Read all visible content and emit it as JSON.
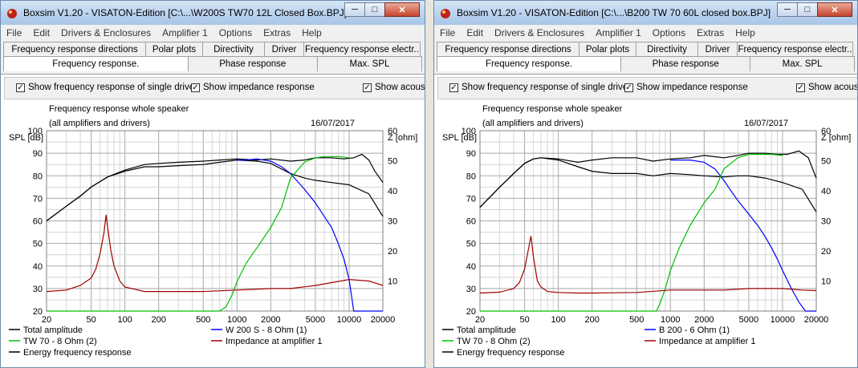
{
  "windows": [
    {
      "title": "Boxsim V1.20 - VISATON-Edition [C:\\...\\W200S TW70 12L Closed Box.BPJ]",
      "menu": [
        "File",
        "Edit",
        "Drivers & Enclosures",
        "Amplifier 1",
        "Options",
        "Extras",
        "Help"
      ],
      "tabs_top": [
        "Frequency response directions",
        "Polar plots",
        "Directivity",
        "Driver",
        "Frequency response electr.."
      ],
      "tabs_bottom": [
        "Frequency response.",
        "Phase response",
        "Max. SPL"
      ],
      "checkboxes": [
        {
          "label": "Show frequency response of single drive",
          "checked": true
        },
        {
          "label": "Show impedance response",
          "checked": true
        },
        {
          "label": "Show acous",
          "checked": true
        }
      ],
      "plot_title": "Frequency response whole speaker",
      "plot_subtitle": "(all amplifiers and drivers)",
      "date": "16/07/2017",
      "y_left_label": "SPL [dB]",
      "y_right_label": "Z [ohm]",
      "chart_data": {
        "type": "line",
        "xscale": "log",
        "xlim": [
          20,
          20000
        ],
        "ylim": [
          20,
          100
        ],
        "y2lim": [
          0,
          60
        ],
        "xticks": [
          "20",
          "50",
          "100",
          "200",
          "500",
          "1000",
          "2000",
          "5000",
          "10000",
          "20000"
        ],
        "yticks": [
          "20",
          "30",
          "40",
          "50",
          "60",
          "70",
          "80",
          "90",
          "100"
        ],
        "y2ticks": [
          "10",
          "20",
          "30",
          "40",
          "50",
          "60"
        ],
        "legend": [
          "Total amplitude",
          "W 200 S - 8 Ohm (1)",
          "TW 70 - 8 Ohm (2)",
          "Impedance at amplifier 1",
          "Energy frequency response"
        ],
        "series": [
          {
            "name": "Total amplitude",
            "color": "#000000",
            "x": [
              20,
              30,
              40,
              50,
              70,
              100,
              150,
              200,
              300,
              500,
              700,
              1000,
              1500,
              2000,
              3000,
              4000,
              5000,
              7000,
              9000,
              11000,
              13000,
              15000,
              17000,
              20000
            ],
            "y": [
              60,
              66.5,
              71,
              75,
              79.5,
              82.5,
              85,
              85.5,
              86,
              86.5,
              87,
              87.5,
              87,
              87.5,
              86.5,
              87,
              88,
              88,
              87.5,
              88,
              89.5,
              87,
              82,
              77
            ]
          },
          {
            "name": "Energy frequency response",
            "color": "#000000",
            "x": [
              20,
              30,
              40,
              50,
              70,
              100,
              150,
              200,
              300,
              500,
              700,
              1000,
              1500,
              2000,
              3000,
              4000,
              5000,
              7000,
              10000,
              15000,
              20000
            ],
            "y": [
              60,
              66.5,
              71,
              75,
              79.5,
              82,
              84,
              84,
              84.5,
              85,
              86,
              87,
              86.5,
              85.5,
              81,
              79,
              78,
              77,
              76,
              72,
              62
            ]
          },
          {
            "name": "W 200 S - 8 Ohm (1)",
            "color": "#0000ff",
            "x": [
              1000,
              1200,
              1500,
              2000,
              2500,
              3000,
              4000,
              5000,
              6000,
              7000,
              8000,
              9000,
              10000,
              11000,
              13000,
              15000,
              20000
            ],
            "y": [
              87,
              87,
              87.5,
              86.5,
              84,
              81,
              74,
              68,
              62,
              57,
              50,
              43,
              34,
              20,
              20,
              20,
              20
            ]
          },
          {
            "name": "TW 70 - 8 Ohm (2)",
            "color": "#00c000",
            "x": [
              20,
              700,
              800,
              900,
              1000,
              1200,
              1500,
              2000,
              2500,
              3000,
              4000,
              5000,
              6000,
              8000,
              10000
            ],
            "y": [
              20,
              20,
              22,
              27,
              33,
              41,
              48,
              57,
              66,
              79,
              86,
              88,
              88.5,
              88.5,
              88
            ]
          },
          {
            "name": "Impedance at amplifier 1",
            "color": "#a00000",
            "axis": "right",
            "x": [
              20,
              30,
              40,
              50,
              55,
              60,
              65,
              68,
              70,
              75,
              80,
              90,
              100,
              150,
              200,
              500,
              1000,
              2000,
              3000,
              5000,
              10000,
              15000,
              20000
            ],
            "y": [
              6.5,
              7,
              8.5,
              11,
              14,
              19,
              26,
              32,
              28,
              20,
              15,
              10,
              8,
              6.5,
              6.5,
              6.5,
              7,
              7.5,
              7.5,
              8.5,
              10.5,
              10,
              8.5
            ]
          }
        ]
      }
    },
    {
      "title": "Boxsim V1.20 - VISATON-Edition [C:\\...\\B200 TW 70 60L closed box.BPJ]",
      "menu": [
        "File",
        "Edit",
        "Drivers & Enclosures",
        "Amplifier 1",
        "Options",
        "Extras",
        "Help"
      ],
      "tabs_top": [
        "Frequency response directions",
        "Polar plots",
        "Directivity",
        "Driver",
        "Frequency response electr.."
      ],
      "tabs_bottom": [
        "Frequency response.",
        "Phase response",
        "Max. SPL"
      ],
      "checkboxes": [
        {
          "label": "Show frequency response of single drive",
          "checked": true
        },
        {
          "label": "Show impedance response",
          "checked": true
        },
        {
          "label": "Show acous",
          "checked": true
        }
      ],
      "plot_title": "Frequency response whole speaker",
      "plot_subtitle": "(all amplifiers and drivers)",
      "date": "16/07/2017",
      "y_left_label": "SPL [dB]",
      "y_right_label": "Z [ohm]",
      "chart_data": {
        "type": "line",
        "xscale": "log",
        "xlim": [
          20,
          20000
        ],
        "ylim": [
          20,
          100
        ],
        "y2lim": [
          0,
          60
        ],
        "xticks": [
          "20",
          "50",
          "100",
          "200",
          "500",
          "1000",
          "2000",
          "5000",
          "10000",
          "20000"
        ],
        "yticks": [
          "20",
          "30",
          "40",
          "50",
          "60",
          "70",
          "80",
          "90",
          "100"
        ],
        "y2ticks": [
          "10",
          "20",
          "30",
          "40",
          "50",
          "60"
        ],
        "legend": [
          "Total amplitude",
          "B 200 - 6 Ohm (1)",
          "TW 70 - 8 Ohm (2)",
          "Impedance at amplifier 1",
          "Energy frequency response"
        ],
        "series": [
          {
            "name": "Total amplitude",
            "color": "#000000",
            "x": [
              20,
              30,
              40,
              50,
              60,
              70,
              100,
              150,
              200,
              300,
              500,
              700,
              1000,
              1500,
              2000,
              3000,
              4000,
              5000,
              7000,
              9000,
              11000,
              14000,
              17000,
              20000
            ],
            "y": [
              66,
              75,
              81,
              85.5,
              87.5,
              88,
              87.5,
              86,
              87,
              88,
              88,
              86.5,
              87.5,
              88,
              89,
              88,
              89,
              90,
              90,
              89.5,
              89.5,
              91,
              88,
              79
            ]
          },
          {
            "name": "Energy frequency response",
            "color": "#000000",
            "x": [
              20,
              30,
              40,
              50,
              60,
              70,
              100,
              150,
              200,
              300,
              500,
              700,
              1000,
              1500,
              2000,
              3000,
              4000,
              5000,
              7000,
              10000,
              15000,
              20000
            ],
            "y": [
              66,
              75,
              81,
              85.5,
              87.5,
              88,
              87,
              84,
              82,
              81,
              81,
              80,
              81,
              80.5,
              80,
              79.5,
              80,
              80,
              79,
              77,
              74,
              64
            ]
          },
          {
            "name": "B 200 - 6 Ohm (1)",
            "color": "#0000ff",
            "x": [
              1000,
              1500,
              2000,
              2500,
              3000,
              3500,
              4000,
              5000,
              6000,
              7000,
              8000,
              9000,
              10000,
              12000,
              14000,
              16000,
              20000
            ],
            "y": [
              87,
              87,
              86,
              83,
              78,
              73,
              69,
              63,
              58,
              53,
              48,
              43,
              38,
              30,
              24,
              20,
              20
            ]
          },
          {
            "name": "TW 70 - 8 Ohm (2)",
            "color": "#00c000",
            "x": [
              20,
              750,
              800,
              900,
              1000,
              1200,
              1500,
              2000,
              2500,
              3000,
              4000,
              5000,
              6000,
              8000,
              10000
            ],
            "y": [
              20,
              20,
              23,
              30,
              38,
              48,
              58,
              68,
              74,
              83,
              88,
              89.5,
              89.5,
              89.5,
              89
            ]
          },
          {
            "name": "Impedance at amplifier 1",
            "color": "#a00000",
            "axis": "right",
            "x": [
              20,
              30,
              40,
              45,
              50,
              55,
              57,
              60,
              65,
              70,
              80,
              100,
              150,
              200,
              500,
              1000,
              2000,
              3000,
              5000,
              10000,
              15000,
              20000
            ],
            "y": [
              6,
              6.3,
              7.5,
              9.5,
              14,
              22,
              25,
              18,
              10,
              8,
              6.5,
              6.2,
              6,
              6,
              6.2,
              7,
              7,
              7,
              7.5,
              7.5,
              7,
              6.8
            ]
          }
        ]
      }
    }
  ]
}
